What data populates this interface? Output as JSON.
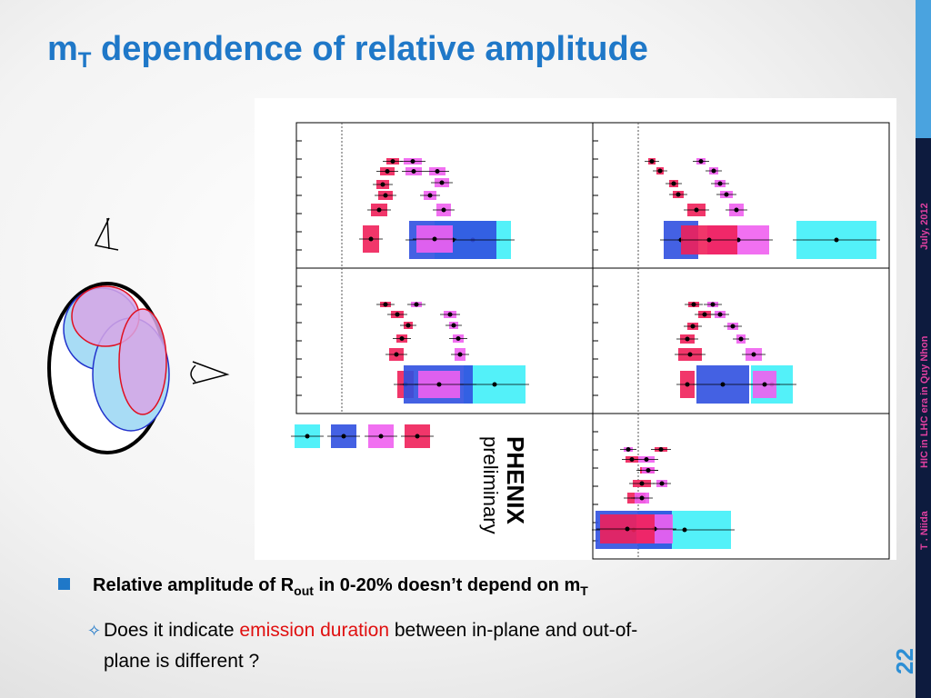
{
  "title": {
    "m": "m",
    "sub": "T",
    "rest": " dependence of relative amplitude"
  },
  "bullets": [
    {
      "parts": [
        "Relative amplitude of R",
        "out",
        " in 0-20% doesn’t depend on m",
        "T"
      ]
    }
  ],
  "sub_bullet": {
    "before": "Does it indicate ",
    "highlight": "emission duration",
    "after": " between in-plane and out-of-",
    "line2": "plane is different ?"
  },
  "sidebar": {
    "author": "T . Niida",
    "event": "HIC in LHC era in Quy Nhon",
    "date": "July, 2012"
  },
  "page_number": "22",
  "plot": {
    "logo": "PHENIX",
    "note": "preliminary"
  }
}
